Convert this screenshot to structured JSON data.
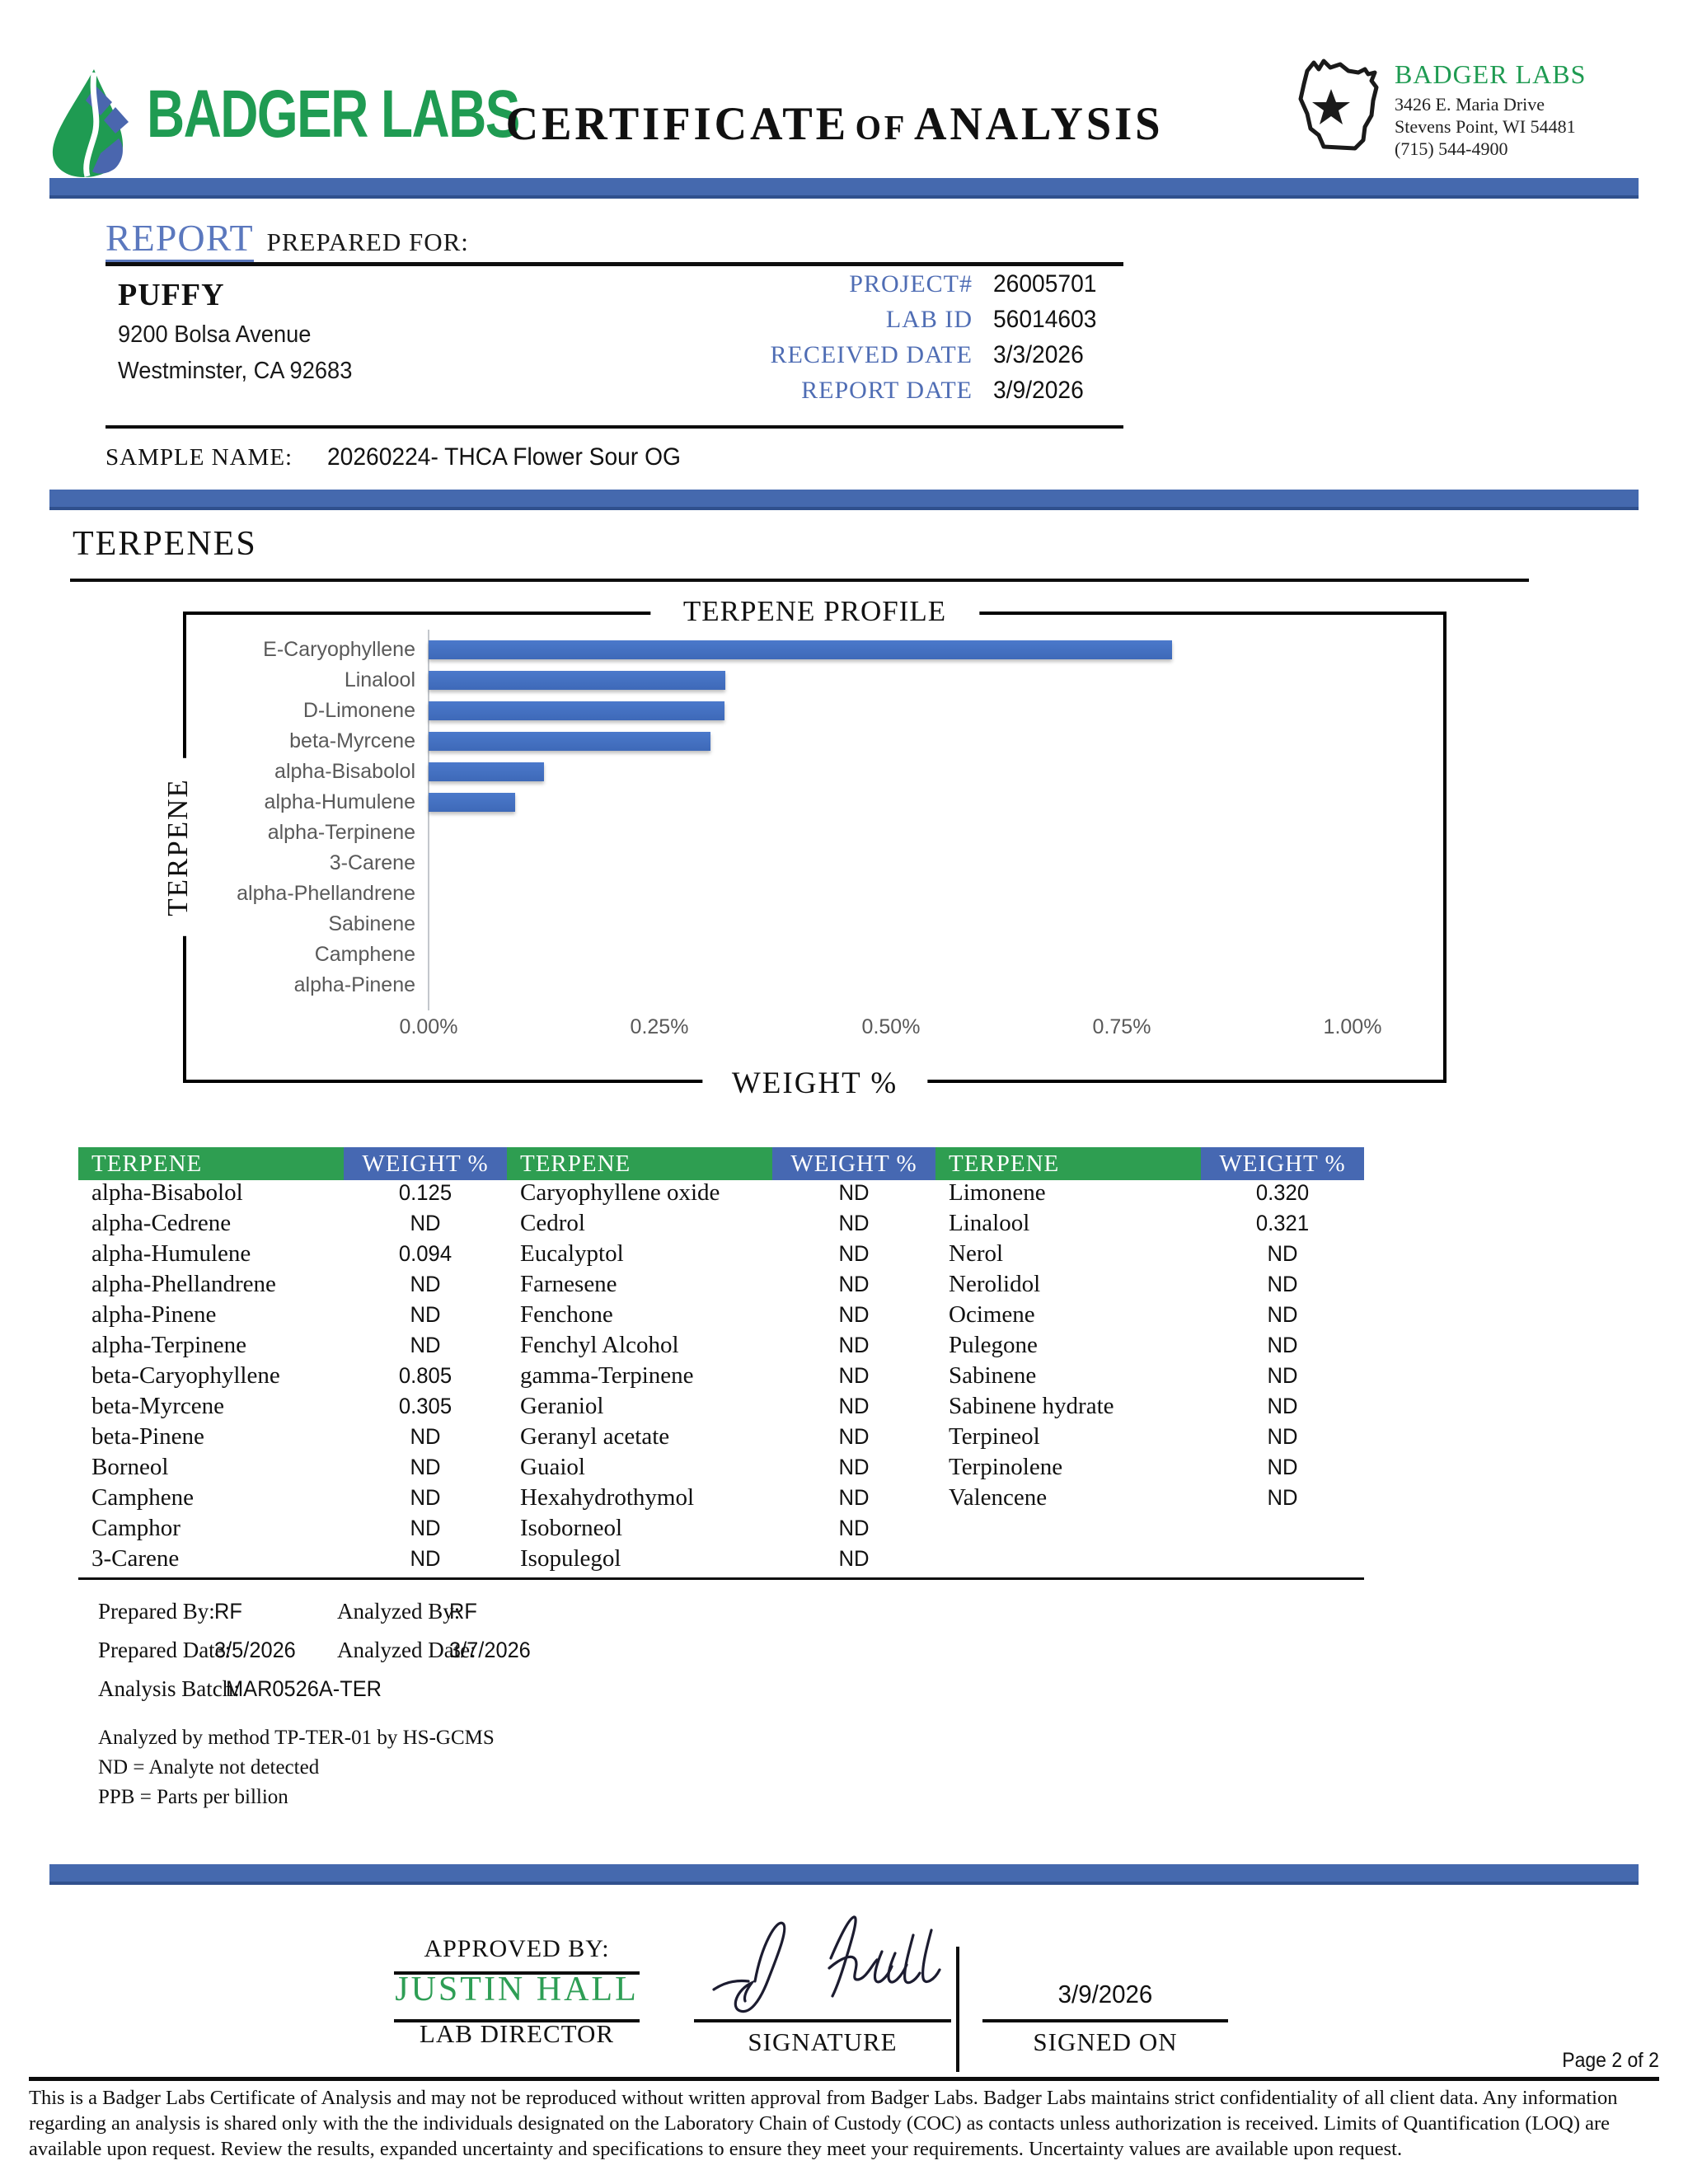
{
  "header": {
    "logo_text": "BADGER LABS",
    "title_part1": "CERTIFICATE",
    "title_part2": "OF",
    "title_part3": "ANALYSIS",
    "lab_name": "BADGER LABS",
    "lab_address1": "3426 E. Maria Drive",
    "lab_address2": "Stevens Point, WI 54481",
    "lab_phone": "(715) 544-4900"
  },
  "report": {
    "heading_primary": "REPORT",
    "heading_secondary": "PREPARED FOR:",
    "client_name": "PUFFY",
    "client_address1": "9200 Bolsa Avenue",
    "client_address2": "Westminster, CA 92683",
    "fields": [
      {
        "label": "PROJECT#",
        "value": "26005701"
      },
      {
        "label": "LAB ID",
        "value": "56014603"
      },
      {
        "label": "RECEIVED DATE",
        "value": "3/3/2026"
      },
      {
        "label": "REPORT DATE",
        "value": "3/9/2026"
      }
    ],
    "sample_name_label": "SAMPLE NAME:",
    "sample_name": "20260224- THCA Flower Sour OG"
  },
  "section_title": "TERPENES",
  "chart_data": {
    "type": "bar",
    "orientation": "horizontal",
    "title": "TERPENE PROFILE",
    "xlabel": "WEIGHT %",
    "ylabel": "TERPENE",
    "categories": [
      "E-Caryophyllene",
      "Linalool",
      "D-Limonene",
      "beta-Myrcene",
      "alpha-Bisabolol",
      "alpha-Humulene",
      "alpha-Terpinene",
      "3-Carene",
      "alpha-Phellandrene",
      "Sabinene",
      "Camphene",
      "alpha-Pinene"
    ],
    "values": [
      0.805,
      0.321,
      0.32,
      0.305,
      0.125,
      0.094,
      0,
      0,
      0,
      0,
      0,
      0
    ],
    "xlim": [
      0,
      1.0
    ],
    "xticks": [
      "0.00%",
      "0.25%",
      "0.50%",
      "0.75%",
      "1.00%"
    ],
    "grid": false,
    "bar_color": "#4472C4"
  },
  "table": {
    "header": {
      "terpene": "TERPENE",
      "weight": "WEIGHT %"
    },
    "columns": [
      [
        {
          "n": "alpha-Bisabolol",
          "v": "0.125"
        },
        {
          "n": "alpha-Cedrene",
          "v": "ND"
        },
        {
          "n": "alpha-Humulene",
          "v": "0.094"
        },
        {
          "n": "alpha-Phellandrene",
          "v": "ND"
        },
        {
          "n": "alpha-Pinene",
          "v": "ND"
        },
        {
          "n": "alpha-Terpinene",
          "v": "ND"
        },
        {
          "n": "beta-Caryophyllene",
          "v": "0.805"
        },
        {
          "n": "beta-Myrcene",
          "v": "0.305"
        },
        {
          "n": "beta-Pinene",
          "v": "ND"
        },
        {
          "n": "Borneol",
          "v": "ND"
        },
        {
          "n": "Camphene",
          "v": "ND"
        },
        {
          "n": "Camphor",
          "v": "ND"
        },
        {
          "n": "3-Carene",
          "v": "ND"
        }
      ],
      [
        {
          "n": "Caryophyllene oxide",
          "v": "ND"
        },
        {
          "n": "Cedrol",
          "v": "ND"
        },
        {
          "n": "Eucalyptol",
          "v": "ND"
        },
        {
          "n": "Farnesene",
          "v": "ND"
        },
        {
          "n": "Fenchone",
          "v": "ND"
        },
        {
          "n": "Fenchyl Alcohol",
          "v": "ND"
        },
        {
          "n": "gamma-Terpinene",
          "v": "ND"
        },
        {
          "n": "Geraniol",
          "v": "ND"
        },
        {
          "n": "Geranyl acetate",
          "v": "ND"
        },
        {
          "n": "Guaiol",
          "v": "ND"
        },
        {
          "n": "Hexahydrothymol",
          "v": "ND"
        },
        {
          "n": "Isoborneol",
          "v": "ND"
        },
        {
          "n": "Isopulegol",
          "v": "ND"
        }
      ],
      [
        {
          "n": "Limonene",
          "v": "0.320"
        },
        {
          "n": "Linalool",
          "v": "0.321"
        },
        {
          "n": "Nerol",
          "v": "ND"
        },
        {
          "n": "Nerolidol",
          "v": "ND"
        },
        {
          "n": "Ocimene",
          "v": "ND"
        },
        {
          "n": "Pulegone",
          "v": "ND"
        },
        {
          "n": "Sabinene",
          "v": "ND"
        },
        {
          "n": "Sabinene hydrate",
          "v": "ND"
        },
        {
          "n": "Terpineol",
          "v": "ND"
        },
        {
          "n": "Terpinolene",
          "v": "ND"
        },
        {
          "n": "Valencene",
          "v": "ND"
        }
      ]
    ]
  },
  "analysis_meta": {
    "prepared_by_label": "Prepared By:",
    "prepared_by": "RF",
    "analyzed_by_label": "Analyzed By:",
    "analyzed_by": "RF",
    "prepared_date_label": "Prepared Date:",
    "prepared_date": "3/5/2026",
    "analyzed_date_label": "Analyzed Date:",
    "analyzed_date": "3/7/2026",
    "batch_label": "Analysis Batch:",
    "batch": "MAR0526A-TER",
    "method_note": "Analyzed by method TP-TER-01 by HS-GCMS",
    "nd_note": "ND = Analyte not detected",
    "ppb_note": "PPB = Parts per billion"
  },
  "footer": {
    "approved_by_label": "APPROVED BY:",
    "approver": "JUSTIN HALL",
    "approver_title": "LAB DIRECTOR",
    "signature_label": "SIGNATURE",
    "signed_on_label": "SIGNED ON",
    "signed_date": "3/9/2026",
    "page_number": "Page 2 of 2",
    "disclaimer": "This is a Badger Labs Certificate of Analysis and may not be reproduced without written approval from Badger Labs. Badger Labs maintains strict confidentiality of all client data. Any information regarding an analysis is shared only with the the individuals designated on the Laboratory Chain of Custody (COC) as contacts unless authorization is received. Limits of Quantification (LOQ) are available upon request. Review the results, expanded uncertainty and specifications to ensure they meet your requirements. Uncertainty values are available upon request.",
    "colors": {
      "accent_blue": "#4569AE",
      "accent_green": "#2E9E51",
      "bar_blue": "#4472C4"
    }
  }
}
